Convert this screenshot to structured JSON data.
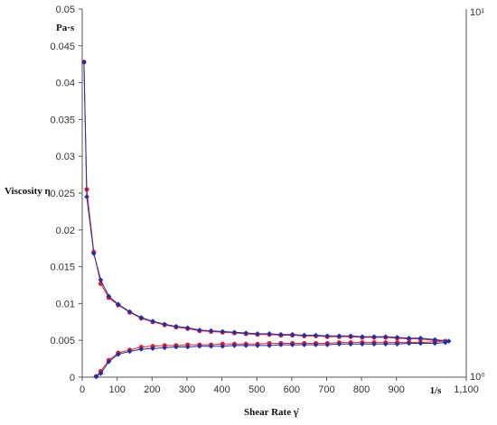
{
  "chart_data": {
    "type": "line",
    "xlabel": "Shear Rate γ̇",
    "ylabel": "Viscosity η",
    "x_unit": "1/s",
    "y_unit": "Pa·s",
    "xlim": [
      0,
      1100
    ],
    "ylim": [
      0,
      0.05
    ],
    "x_ticks": [
      0,
      100,
      200,
      300,
      400,
      500,
      600,
      700,
      800,
      900,
      1100
    ],
    "x_tick_labels": [
      "0",
      "100",
      "200",
      "300",
      "400",
      "500",
      "600",
      "700",
      "800",
      "900",
      "1,100"
    ],
    "y_ticks": [
      0,
      0.005,
      0.01,
      0.015,
      0.02,
      0.025,
      0.03,
      0.035,
      0.04,
      0.045,
      0.05
    ],
    "y_tick_labels": [
      "0",
      "0.005",
      "0.01",
      "0.015",
      "0.02",
      "0.025",
      "0.03",
      "0.035",
      "0.04",
      "0.045",
      "0.05"
    ],
    "right_axis_labels": {
      "top": "10¹",
      "bottom": "10⁰"
    },
    "grid": false,
    "series": [
      {
        "color": "#e8202a",
        "marker": "circle",
        "points": [
          [
            5,
            0.0428
          ],
          [
            13,
            0.0255
          ],
          [
            33,
            0.017
          ],
          [
            53,
            0.0127
          ],
          [
            76,
            0.0108
          ],
          [
            103,
            0.0098
          ],
          [
            136,
            0.0088
          ],
          [
            169,
            0.008
          ],
          [
            202,
            0.0075
          ],
          [
            236,
            0.0071
          ],
          [
            269,
            0.0068
          ],
          [
            302,
            0.0066
          ],
          [
            336,
            0.0063
          ],
          [
            369,
            0.0062
          ],
          [
            402,
            0.0061
          ],
          [
            436,
            0.006
          ],
          [
            469,
            0.0059
          ],
          [
            502,
            0.0058
          ],
          [
            536,
            0.0058
          ],
          [
            569,
            0.0057
          ],
          [
            602,
            0.0057
          ],
          [
            636,
            0.0056
          ],
          [
            669,
            0.0056
          ],
          [
            702,
            0.0055
          ],
          [
            736,
            0.0055
          ],
          [
            769,
            0.0055
          ],
          [
            802,
            0.0054
          ],
          [
            836,
            0.0054
          ],
          [
            869,
            0.0054
          ],
          [
            902,
            0.0053
          ],
          [
            936,
            0.0052
          ],
          [
            969,
            0.0052
          ],
          [
            1010,
            0.005
          ],
          [
            1040,
            0.0049
          ],
          [
            1010,
            0.0048
          ],
          [
            969,
            0.0047
          ],
          [
            936,
            0.0047
          ],
          [
            902,
            0.0047
          ],
          [
            869,
            0.0047
          ],
          [
            836,
            0.0047
          ],
          [
            802,
            0.0047
          ],
          [
            769,
            0.0047
          ],
          [
            736,
            0.0047
          ],
          [
            702,
            0.0046
          ],
          [
            669,
            0.0046
          ],
          [
            636,
            0.0046
          ],
          [
            602,
            0.0046
          ],
          [
            569,
            0.0046
          ],
          [
            536,
            0.0046
          ],
          [
            502,
            0.0045
          ],
          [
            469,
            0.0045
          ],
          [
            436,
            0.0045
          ],
          [
            402,
            0.0045
          ],
          [
            369,
            0.0044
          ],
          [
            336,
            0.0044
          ],
          [
            302,
            0.0044
          ],
          [
            269,
            0.0043
          ],
          [
            236,
            0.0043
          ],
          [
            202,
            0.0042
          ],
          [
            169,
            0.0041
          ],
          [
            136,
            0.0037
          ],
          [
            103,
            0.0033
          ],
          [
            76,
            0.0023
          ],
          [
            53,
            0.0008
          ],
          [
            40,
            0.0001
          ]
        ]
      },
      {
        "color": "#1f2fa8",
        "marker": "diamond",
        "points": [
          [
            5,
            0.0428
          ],
          [
            13,
            0.0245
          ],
          [
            33,
            0.0168
          ],
          [
            53,
            0.0132
          ],
          [
            76,
            0.011
          ],
          [
            103,
            0.0099
          ],
          [
            136,
            0.0089
          ],
          [
            169,
            0.0081
          ],
          [
            202,
            0.0076
          ],
          [
            236,
            0.0072
          ],
          [
            269,
            0.0069
          ],
          [
            302,
            0.0067
          ],
          [
            336,
            0.0064
          ],
          [
            369,
            0.0063
          ],
          [
            402,
            0.0062
          ],
          [
            436,
            0.0061
          ],
          [
            469,
            0.006
          ],
          [
            502,
            0.0059
          ],
          [
            536,
            0.0059
          ],
          [
            569,
            0.0058
          ],
          [
            602,
            0.0058
          ],
          [
            636,
            0.0057
          ],
          [
            669,
            0.0057
          ],
          [
            702,
            0.0056
          ],
          [
            736,
            0.0056
          ],
          [
            769,
            0.0056
          ],
          [
            802,
            0.0055
          ],
          [
            836,
            0.0055
          ],
          [
            869,
            0.0055
          ],
          [
            902,
            0.0054
          ],
          [
            936,
            0.0053
          ],
          [
            969,
            0.0053
          ],
          [
            1010,
            0.0051
          ],
          [
            1050,
            0.0049
          ],
          [
            1040,
            0.0047
          ],
          [
            1010,
            0.0046
          ],
          [
            969,
            0.0046
          ],
          [
            936,
            0.0046
          ],
          [
            902,
            0.0045
          ],
          [
            869,
            0.0045
          ],
          [
            836,
            0.0045
          ],
          [
            802,
            0.0045
          ],
          [
            769,
            0.0045
          ],
          [
            736,
            0.0045
          ],
          [
            702,
            0.0044
          ],
          [
            669,
            0.0044
          ],
          [
            636,
            0.0044
          ],
          [
            602,
            0.0044
          ],
          [
            569,
            0.0044
          ],
          [
            536,
            0.0043
          ],
          [
            502,
            0.0043
          ],
          [
            469,
            0.0043
          ],
          [
            436,
            0.0043
          ],
          [
            402,
            0.0042
          ],
          [
            369,
            0.0042
          ],
          [
            336,
            0.0042
          ],
          [
            302,
            0.0041
          ],
          [
            269,
            0.0041
          ],
          [
            236,
            0.004
          ],
          [
            202,
            0.0039
          ],
          [
            169,
            0.0038
          ],
          [
            136,
            0.0035
          ],
          [
            103,
            0.0031
          ],
          [
            76,
            0.0021
          ],
          [
            53,
            0.0005
          ],
          [
            40,
            0.0001
          ]
        ]
      }
    ]
  }
}
